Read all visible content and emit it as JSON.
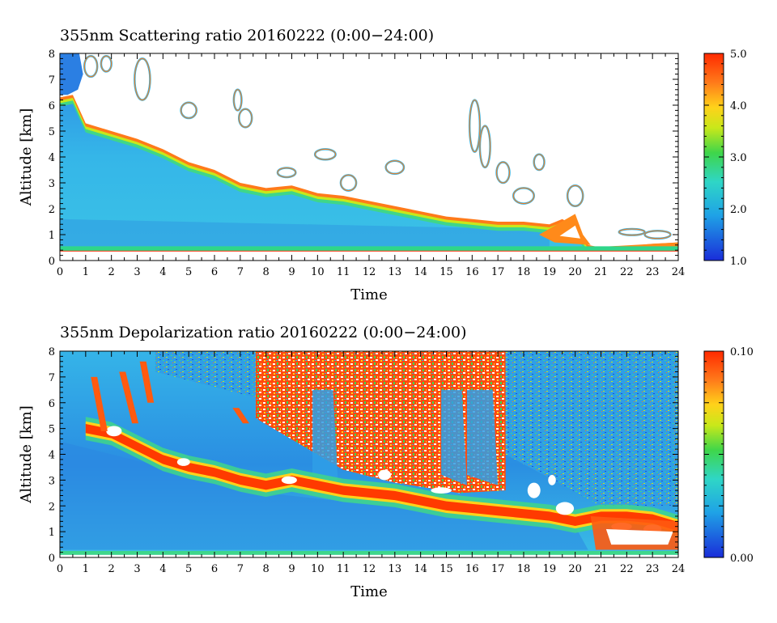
{
  "chart_data": [
    {
      "type": "heatmap",
      "title": "355nm Scattering ratio  20160222 (0:00−24:00)",
      "xlabel": "Time",
      "ylabel": "Altitude [km]",
      "xlim": [
        0,
        24
      ],
      "ylim": [
        0,
        8
      ],
      "x_ticks": [
        "0",
        "1",
        "2",
        "3",
        "4",
        "5",
        "6",
        "7",
        "8",
        "9",
        "10",
        "11",
        "12",
        "13",
        "14",
        "15",
        "16",
        "17",
        "18",
        "19",
        "20",
        "21",
        "22",
        "23",
        "24"
      ],
      "y_ticks": [
        "0",
        "1",
        "2",
        "3",
        "4",
        "5",
        "6",
        "7",
        "8"
      ],
      "colorbar": {
        "min": 1.0,
        "max": 5.0,
        "tick_labels": [
          "5.0",
          "4.0",
          "3.0",
          "2.0",
          "1.0"
        ],
        "tick_values": [
          5.0,
          4.0,
          3.0,
          2.0,
          1.0
        ]
      },
      "cloud_base_profile": {
        "time": [
          0,
          0.5,
          1,
          2,
          3,
          4,
          5,
          6,
          7,
          8,
          9,
          10,
          11,
          12,
          13,
          14,
          15,
          16,
          17,
          18,
          19,
          19.5,
          20,
          20.5,
          21,
          22,
          23,
          24
        ],
        "altitude_km": [
          6.3,
          6.4,
          5.3,
          5.0,
          4.7,
          4.3,
          3.8,
          3.5,
          3.0,
          2.8,
          2.9,
          2.6,
          2.5,
          2.3,
          2.1,
          1.9,
          1.7,
          1.6,
          1.5,
          1.5,
          1.4,
          1.6,
          1.3,
          0.6,
          0.5,
          0.55,
          0.65,
          0.7
        ]
      },
      "surface_layer_km": 0.5,
      "colors": {
        "low": "#1a52d9",
        "background_aerosol": "#35b4e8",
        "edge": "#ff4500",
        "cloud": "#ffffff"
      }
    },
    {
      "type": "heatmap",
      "title": "355nm Depolarization ratio  20160222 (0:00−24:00)",
      "xlabel": "Time",
      "ylabel": "Altitude [km]",
      "xlim": [
        0,
        24
      ],
      "ylim": [
        0,
        8
      ],
      "x_ticks": [
        "0",
        "1",
        "2",
        "3",
        "4",
        "5",
        "6",
        "7",
        "8",
        "9",
        "10",
        "11",
        "12",
        "13",
        "14",
        "15",
        "16",
        "17",
        "18",
        "19",
        "20",
        "21",
        "22",
        "23",
        "24"
      ],
      "y_ticks": [
        "0",
        "1",
        "2",
        "3",
        "4",
        "5",
        "6",
        "7",
        "8"
      ],
      "colorbar": {
        "min": 0.0,
        "max": 0.1,
        "tick_labels": [
          "0.10",
          "0.00"
        ],
        "tick_values": [
          0.1,
          0.0
        ]
      },
      "layer_profile": {
        "time": [
          1,
          2,
          3,
          4,
          5,
          6,
          7,
          8,
          9,
          10,
          11,
          12,
          13,
          14,
          15,
          16,
          17,
          18,
          19,
          20,
          21,
          22,
          23,
          24
        ],
        "altitude_km": [
          5.0,
          4.8,
          4.3,
          3.8,
          3.5,
          3.3,
          3.0,
          2.8,
          3.0,
          2.8,
          2.6,
          2.5,
          2.4,
          2.2,
          2.0,
          1.9,
          1.8,
          1.7,
          1.6,
          1.4,
          1.6,
          1.6,
          1.5,
          1.2
        ]
      },
      "noisy_region_time": [
        7.6,
        17.3
      ],
      "colors": {
        "low": "#1a52d9",
        "mid": "#35b4e8",
        "high": "#ff3a00",
        "cloud": "#ffffff"
      }
    }
  ]
}
